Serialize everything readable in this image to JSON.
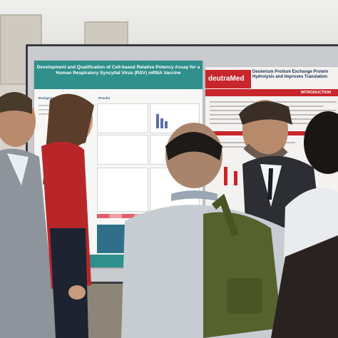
{
  "scene": {
    "description_free": true
  },
  "poster_left": {
    "title": "Development and Qualification of Cell-based Relative Potency Assay for a Human Respiratory Syncytial Virus (RSV) mRNA Vaccine",
    "section_background": "Background",
    "section_results": "Results",
    "header_color": "#2f8f8a"
  },
  "poster_right": {
    "brand": "deutraMed",
    "title": "Deuterium Protium Exchange Protein Hydrolysis and Improves Translation",
    "intro_label": "INTRODUCTION",
    "accent_color": "#c8262c"
  }
}
